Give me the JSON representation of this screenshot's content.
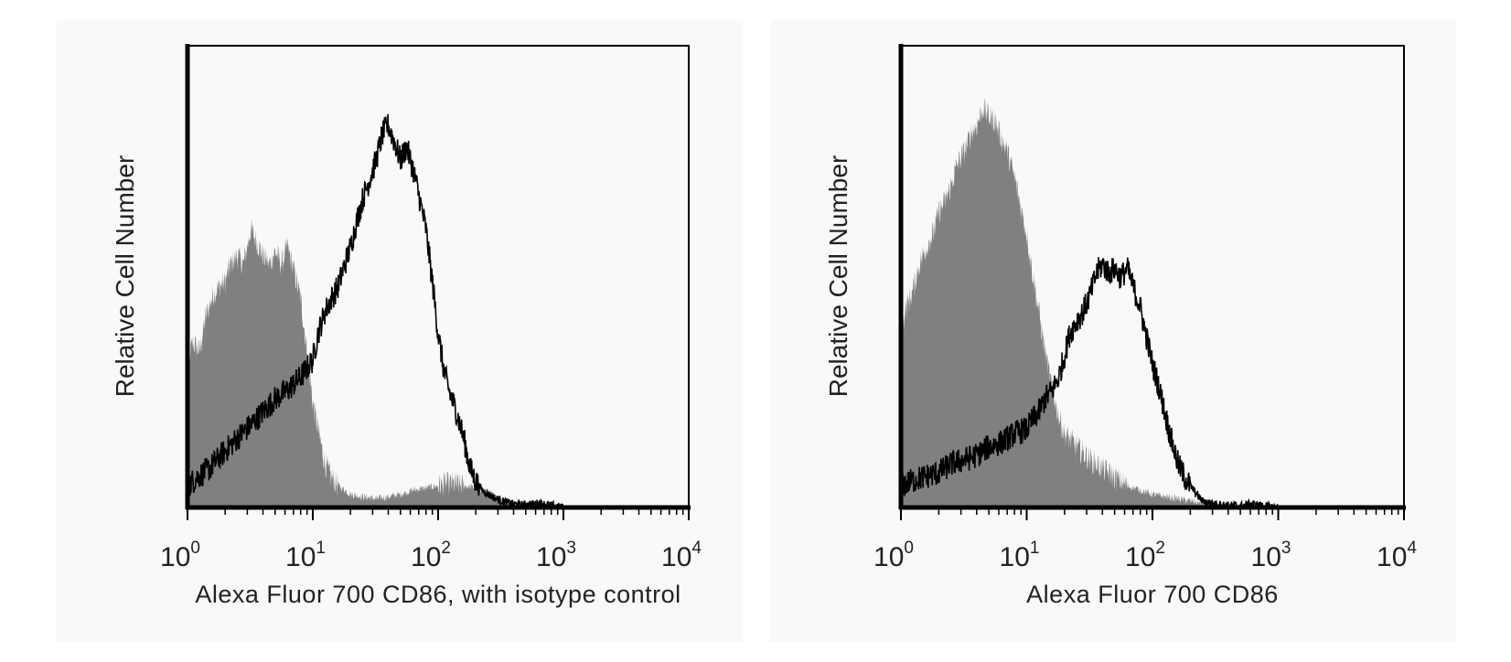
{
  "colors": {
    "panel_bg": "#f9f9f9",
    "frame": "#000000",
    "filled_histogram": "#808080",
    "open_histogram": "#000000"
  },
  "chart_data": [
    {
      "type": "area",
      "title": "",
      "xlabel": "Alexa Fluor 700 CD86, with isotype control",
      "ylabel": "Relative Cell Number",
      "xscale": "log",
      "xlim": [
        1,
        10000
      ],
      "ylim": [
        0,
        1.0
      ],
      "x_tick_labels": [
        {
          "base": "10",
          "exp": "0"
        },
        {
          "base": "10",
          "exp": "1"
        },
        {
          "base": "10",
          "exp": "2"
        },
        {
          "base": "10",
          "exp": "3"
        },
        {
          "base": "10",
          "exp": "4"
        }
      ],
      "grid": false,
      "legend": "none",
      "series": [
        {
          "style": "filled-gray",
          "x": [
            1,
            1.1,
            1.25,
            1.4,
            1.6,
            1.8,
            2.0,
            2.2,
            2.5,
            2.8,
            3.2,
            3.6,
            4.0,
            4.5,
            5.0,
            5.6,
            6.3,
            7.0,
            8.0,
            9.0,
            10,
            11,
            12.5,
            14,
            16,
            18,
            20,
            25,
            32,
            40,
            50,
            63,
            80,
            100,
            125,
            160,
            200,
            250,
            320,
            400,
            500,
            630,
            800,
            1000
          ],
          "y": [
            0.33,
            0.38,
            0.36,
            0.44,
            0.49,
            0.51,
            0.52,
            0.56,
            0.58,
            0.56,
            0.64,
            0.61,
            0.58,
            0.56,
            0.59,
            0.56,
            0.6,
            0.55,
            0.48,
            0.36,
            0.24,
            0.18,
            0.1,
            0.07,
            0.05,
            0.04,
            0.03,
            0.025,
            0.02,
            0.025,
            0.03,
            0.04,
            0.045,
            0.05,
            0.055,
            0.05,
            0.045,
            0.035,
            0.02,
            0.01,
            0.008,
            0.005,
            0.003,
            0
          ]
        },
        {
          "style": "black-outline",
          "x": [
            1,
            1.2,
            1.5,
            2.0,
            2.5,
            3.2,
            4.0,
            5.0,
            6.3,
            8.0,
            10,
            11,
            12.5,
            14,
            16,
            18,
            20,
            22,
            25,
            28,
            32,
            36,
            40,
            45,
            50,
            56,
            63,
            70,
            80,
            90,
            100,
            112,
            125,
            140,
            160,
            180,
            200,
            225,
            250,
            320,
            400,
            500,
            630,
            800,
            1000
          ],
          "y": [
            0.05,
            0.07,
            0.09,
            0.13,
            0.16,
            0.19,
            0.22,
            0.25,
            0.27,
            0.3,
            0.34,
            0.4,
            0.45,
            0.48,
            0.51,
            0.56,
            0.6,
            0.65,
            0.71,
            0.75,
            0.8,
            0.86,
            0.88,
            0.84,
            0.8,
            0.83,
            0.78,
            0.72,
            0.64,
            0.52,
            0.4,
            0.31,
            0.26,
            0.22,
            0.16,
            0.09,
            0.06,
            0.04,
            0.03,
            0.015,
            0.008,
            0.006,
            0.01,
            0.005,
            0
          ]
        }
      ]
    },
    {
      "type": "area",
      "title": "",
      "xlabel": "Alexa Fluor 700 CD86",
      "ylabel": "Relative Cell Number",
      "xscale": "log",
      "xlim": [
        1,
        10000
      ],
      "ylim": [
        0,
        1.0
      ],
      "x_tick_labels": [
        {
          "base": "10",
          "exp": "0"
        },
        {
          "base": "10",
          "exp": "1"
        },
        {
          "base": "10",
          "exp": "2"
        },
        {
          "base": "10",
          "exp": "3"
        },
        {
          "base": "10",
          "exp": "4"
        }
      ],
      "grid": false,
      "legend": "none",
      "series": [
        {
          "style": "filled-gray",
          "x": [
            1,
            1.1,
            1.25,
            1.4,
            1.6,
            1.8,
            2.0,
            2.2,
            2.5,
            2.8,
            3.2,
            3.6,
            4.0,
            4.5,
            5.0,
            5.6,
            6.3,
            7.0,
            8.0,
            9.0,
            10,
            11,
            12.5,
            14,
            16,
            18,
            20,
            25,
            32,
            40,
            50,
            63,
            80,
            100,
            125,
            160,
            200,
            250,
            320,
            400
          ],
          "y": [
            0.4,
            0.46,
            0.5,
            0.56,
            0.6,
            0.63,
            0.68,
            0.7,
            0.74,
            0.79,
            0.82,
            0.86,
            0.88,
            0.92,
            0.9,
            0.89,
            0.85,
            0.82,
            0.76,
            0.69,
            0.63,
            0.55,
            0.45,
            0.36,
            0.27,
            0.21,
            0.17,
            0.14,
            0.11,
            0.09,
            0.07,
            0.05,
            0.04,
            0.03,
            0.025,
            0.02,
            0.015,
            0.01,
            0.005,
            0
          ]
        },
        {
          "style": "black-outline",
          "x": [
            1,
            1.2,
            1.5,
            2.0,
            2.5,
            3.2,
            4.0,
            5.0,
            6.3,
            8.0,
            10,
            11,
            12.5,
            14,
            16,
            18,
            20,
            22,
            25,
            28,
            32,
            36,
            40,
            45,
            50,
            56,
            63,
            70,
            80,
            90,
            100,
            112,
            125,
            140,
            160,
            180,
            200,
            225,
            250,
            320,
            400,
            500,
            630,
            800,
            1000
          ],
          "y": [
            0.05,
            0.06,
            0.07,
            0.08,
            0.1,
            0.11,
            0.12,
            0.14,
            0.15,
            0.17,
            0.18,
            0.2,
            0.22,
            0.25,
            0.27,
            0.3,
            0.35,
            0.4,
            0.43,
            0.45,
            0.49,
            0.54,
            0.56,
            0.54,
            0.55,
            0.53,
            0.55,
            0.51,
            0.46,
            0.39,
            0.33,
            0.28,
            0.22,
            0.16,
            0.1,
            0.07,
            0.05,
            0.03,
            0.015,
            0.008,
            0.005,
            0.004,
            0.008,
            0.003,
            0
          ]
        }
      ]
    }
  ]
}
